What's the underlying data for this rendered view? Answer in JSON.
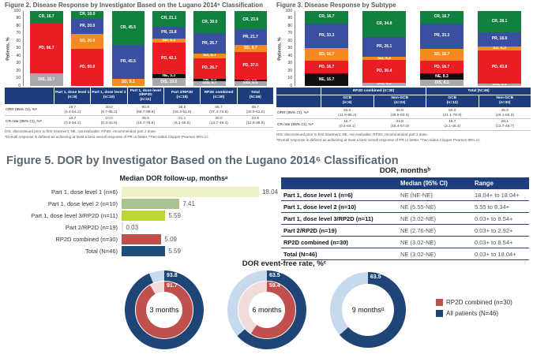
{
  "colors": {
    "cr_green": "#12813f",
    "pr_blue": "#3a4f9f",
    "sd_orange": "#f6891f",
    "pd_red": "#eb1c24",
    "ne_black": "#101010",
    "dis_gray": "#a7a9ac",
    "header_navy": "#1c3e7e",
    "navy": "#1f4577",
    "light_blue": "#c7d9ed",
    "brick": "#c0504d",
    "light_pink": "#f0dbda",
    "title_gray": "#58595b",
    "fig5_title_gray": "#5b6770"
  },
  "chart_data": [
    {
      "id": "fig2",
      "type": "bar",
      "stacked": true,
      "title": "Figure 2. Disease Response by Investigator Based on the Lugano 2014⁵ Classification",
      "ylabel": "Patients, %",
      "ylim": [
        0,
        100
      ],
      "yticks": [
        0,
        10,
        20,
        30,
        40,
        50,
        60,
        70,
        80,
        90,
        100
      ],
      "grid": false,
      "categories": [
        "Part 1, dose level 1 (n=6)",
        "Part 1, dose level 2 (n=10)",
        "Part 1, dose level 3/RP2D (n=11)",
        "Part 2/RP2D (n=19)",
        "RP2D combined (n=30)",
        "Total (N=46)"
      ],
      "series": [
        {
          "name": "DIS",
          "color_key": "dis_gray",
          "values": [
            16.7,
            null,
            null,
            10.5,
            6.7,
            6.5
          ]
        },
        {
          "name": "NE",
          "color_key": "ne_black",
          "values": [
            null,
            null,
            null,
            5.3,
            3.3,
            2.2
          ]
        },
        {
          "name": "PD",
          "color_key": "pd_red",
          "values": [
            66.7,
            50.0,
            null,
            42.1,
            26.7,
            37.0
          ]
        },
        {
          "name": "SD",
          "color_key": "sd_orange",
          "values": [
            null,
            20.0,
            9.1,
            5.3,
            6.7,
            8.7
          ]
        },
        {
          "name": "PR",
          "color_key": "pr_blue",
          "values": [
            null,
            20.0,
            45.5,
            15.8,
            26.7,
            21.7
          ]
        },
        {
          "name": "CR",
          "color_key": "cr_green",
          "values": [
            16.7,
            10.0,
            45.5,
            21.1,
            30.0,
            23.9
          ]
        }
      ]
    },
    {
      "id": "fig3",
      "type": "bar",
      "stacked": true,
      "title": "Figure 3. Disease Response by Subtype",
      "ylabel": "Patients, %",
      "ylim": [
        0,
        100
      ],
      "yticks": [
        0,
        10,
        20,
        30,
        40,
        50,
        60,
        70,
        80,
        90,
        100
      ],
      "grid": false,
      "categories": [
        "GCB (n=6)",
        "Non-GCB (n=23)",
        "GCB (n=12)",
        "Non-GCB (n=32)"
      ],
      "groups": [
        {
          "label": "RP2D combined (n=30)",
          "span": 2
        },
        {
          "label": "Total (N=46)",
          "span": 2
        }
      ],
      "series": [
        {
          "name": "DIS",
          "color_key": "dis_gray",
          "values": [
            null,
            4.3,
            8.3,
            3.1
          ]
        },
        {
          "name": "NE",
          "color_key": "ne_black",
          "values": [
            16.7,
            null,
            8.3,
            null
          ]
        },
        {
          "name": "PD",
          "color_key": "pd_red",
          "values": [
            16.7,
            30.4,
            16.7,
            43.8
          ]
        },
        {
          "name": "SD",
          "color_key": "sd_orange",
          "values": [
            16.7,
            4.3,
            16.7,
            6.3
          ]
        },
        {
          "name": "PR",
          "color_key": "pr_blue",
          "values": [
            33.3,
            26.1,
            33.3,
            18.8
          ]
        },
        {
          "name": "CR",
          "color_key": "cr_green",
          "values": [
            16.7,
            34.8,
            16.7,
            28.1
          ]
        }
      ]
    },
    {
      "id": "fig5-bars",
      "type": "bar",
      "orientation": "horizontal",
      "title": "Median DOR follow-up, monthsᵃ",
      "xlim": [
        0,
        20
      ],
      "categories": [
        "Part 1, dose level 1 (n=6)",
        "Part 1, dose level 2 (n=10)",
        "Part 1, dose level 3/RP2D (n=11)",
        "Part 2/RP2D (n=19)",
        "RP2D combined (n=30)",
        "Total (N=46)"
      ],
      "values": [
        18.04,
        7.41,
        5.59,
        0.03,
        5.09,
        5.59
      ],
      "bar_colors": [
        "#f0f0c6",
        "#aac28d",
        "#bdd531",
        "#cfe3f0",
        "#bf4f4b",
        "#1f4e79"
      ]
    },
    {
      "id": "fig5-donuts",
      "type": "pie",
      "title": "DOR event-free rate, %ᶜ",
      "items": [
        {
          "label": "3 months",
          "all_patients": 93.8,
          "rp2d_combined": 91.7
        },
        {
          "label": "6 months",
          "all_patients": 63.5,
          "rp2d_combined": 59.4
        },
        {
          "label": "9 monthsᵈ",
          "all_patients": 63.5,
          "rp2d_combined": null
        }
      ],
      "legend": [
        {
          "label": "RP2D combined (n=30)",
          "color_key": "brick"
        },
        {
          "label": "All patients (N=46)",
          "color_key": "navy"
        }
      ]
    }
  ],
  "fig2": {
    "table": {
      "col_headers": [
        [
          "Part 1, dose level 1",
          "(n=6)"
        ],
        [
          "Part 1, dose level 2",
          "(n=10)"
        ],
        [
          "Part 1, dose level 3/RP2D",
          "(n=11)"
        ],
        [
          "Part 2/RP2D",
          "(n=19)"
        ],
        [
          "RP2D combined",
          "(n=30)"
        ],
        [
          "Total",
          "(N=46)"
        ]
      ],
      "rows": [
        {
          "label": "ORR (95% CI), %ᵃ",
          "cells": [
            [
              "16.7",
              "(0.4-64.1)"
            ],
            [
              "30.0",
              "(6.7-65.2)"
            ],
            [
              "90.9",
              "(58.7-99.8)"
            ],
            [
              "36.8",
              "(16.3-61.6)"
            ],
            [
              "56.7",
              "(37.4-74.5)"
            ],
            [
              "45.7",
              "(30.9-61.0)"
            ]
          ]
        },
        {
          "label": "CR rate (95% CI), %ᵃ",
          "cells": [
            [
              "16.7",
              "(0.4-64.1)"
            ],
            [
              "10.0",
              "(0.3-44.5)"
            ],
            [
              "45.5",
              "(16.7-76.6)"
            ],
            [
              "21.1",
              "(6.1-45.6)"
            ],
            [
              "30.0",
              "(14.7-49.4)"
            ],
            [
              "23.9",
              "(12.6-38.8)"
            ]
          ]
        }
      ]
    },
    "footnotes": [
      "DIS, discontinued prior to first treatment; NE, not evaluable; RP2D, recommended part 2 dose.",
      "ᵃOverall response is defined as achieving at least a best overall response of PR or better. ᵇTwo-sided Clopper-Pearson 95% CI."
    ]
  },
  "fig3": {
    "table": {
      "col_headers": [
        [
          "GCB",
          "(n=6)"
        ],
        [
          "Non-GCB",
          "(n=23)"
        ],
        [
          "GCB",
          "(n=12)"
        ],
        [
          "Non-GCB",
          "(n=32)"
        ]
      ],
      "group_headers": [
        {
          "label": "RP2D combined (n=30)",
          "span": 2
        },
        {
          "label": "Total (N=46)",
          "span": 2
        }
      ],
      "rows": [
        {
          "label": "ORR (95% CI), %ᵃ",
          "cells": [
            [
              "50.0",
              "(11.8-88.2)"
            ],
            [
              "60.9",
              "(38.5-80.3)"
            ],
            [
              "50.0",
              "(21.1-78.9)"
            ],
            [
              "46.9",
              "(29.1-65.3)"
            ]
          ]
        },
        {
          "label": "CR rate (95% CI), %ᵃ",
          "cells": [
            [
              "16.7",
              "(0.4-64.1)"
            ],
            [
              "34.8",
              "(16.4-57.3)"
            ],
            [
              "16.7",
              "(2.1-48.4)"
            ],
            [
              "28.1",
              "(13.7-46.7)"
            ]
          ]
        }
      ]
    },
    "footnotes": [
      "DIS, discontinued prior to first treatment; NE, not evaluable; RP2D, recommended part 2 dose.",
      "ᵃOverall response is defined as achieving at least a best overall response of PR or better. ᵇTwo-sided Clopper-Pearson 95% CI."
    ]
  },
  "fig5": {
    "title": "Figure 5. DOR by Investigator Based on the Lugano 2014⁶ Classification"
  },
  "dor_table": {
    "title": "DOR, monthsᵇ",
    "headers": [
      "",
      "Median (95% CI)",
      "Range"
    ],
    "rows": [
      [
        "Part 1, dose level 1 (n=6)",
        "NE (NE-NE)",
        "18.04+ to 18.04+"
      ],
      [
        "Part 1, dose level 2 (n=10)",
        "NE (5.55-NE)",
        "5.55 to 8.34+"
      ],
      [
        "Part 1, dose level 3/RP2D (n=11)",
        "NE (3.02-NE)",
        "0.03+ to 8.54+"
      ],
      [
        "Part 2/RP2D (n=19)",
        "NE (2.76-NE)",
        "0.03+ to 2.92+"
      ],
      [
        "RP2D combined (n=30)",
        "NE (3.02-NE)",
        "0.03+ to 8.54+"
      ],
      [
        "Total (N=46)",
        "NE (3.02-NE)",
        "0.03+ to 18.04+"
      ]
    ]
  }
}
